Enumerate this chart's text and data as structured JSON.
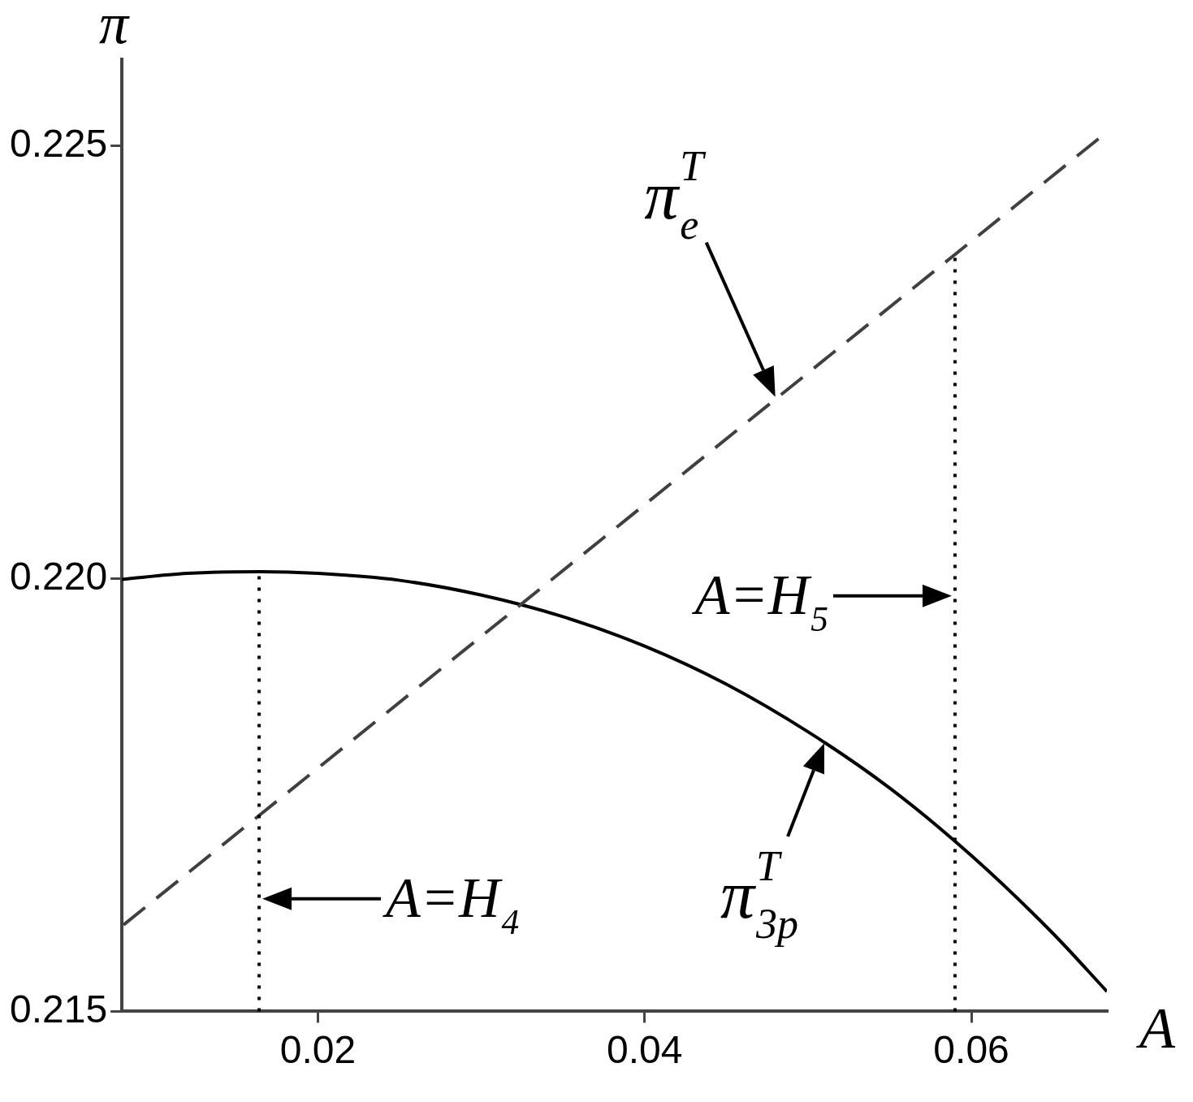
{
  "chart_data": {
    "type": "line",
    "xlabel": "A",
    "ylabel": "π",
    "xlim": [
      0.008,
      0.0683
    ],
    "xticks": [
      0.02,
      0.04,
      0.06
    ],
    "ylim": [
      0.215,
      0.226
    ],
    "yticks": [
      0.215,
      {
        "value": 0.22,
        "label": "0.220"
      },
      0.225
    ],
    "grid": false,
    "legend": false,
    "marker": "none",
    "series": [
      {
        "type": "line",
        "color": "#404040",
        "line_style": "dashed",
        "x": [
          0.0081,
          0.0683
        ],
        "values": [
          0.216,
          0.22516
        ]
      },
      {
        "type": "line",
        "color": "#000000",
        "line_style": "solid",
        "x": [
          0.008,
          0.012,
          0.0165,
          0.02,
          0.025,
          0.03,
          0.035,
          0.04,
          0.045,
          0.05,
          0.055,
          0.06,
          0.065,
          0.0683
        ],
        "values": [
          0.21999,
          0.22006,
          0.22008,
          0.22006,
          0.21998,
          0.21981,
          0.21956,
          0.21922,
          0.21878,
          0.21823,
          0.21758,
          0.2168,
          0.2159,
          0.21523
        ]
      }
    ],
    "ref_lines": [
      {
        "axis": "x",
        "value": 0.0164,
        "color": "#000000",
        "line_style": "dotted"
      },
      {
        "axis": "x",
        "value": 0.059,
        "color": "#000000",
        "line_style": "dotted"
      }
    ],
    "annotations": [
      {
        "text": "π$^{T}$$_{e}$",
        "x": 0.048,
        "y": 0.2221
      },
      {
        "text": "π$^{T}$$_{3p}$",
        "x": 0.051,
        "y": 0.2181
      },
      {
        "text": "A=H$_{4}$",
        "x": 0.0164,
        "y": 0.2163
      },
      {
        "text": "A=H$_{5}$",
        "x": 0.059,
        "y": 0.2198
      }
    ]
  }
}
